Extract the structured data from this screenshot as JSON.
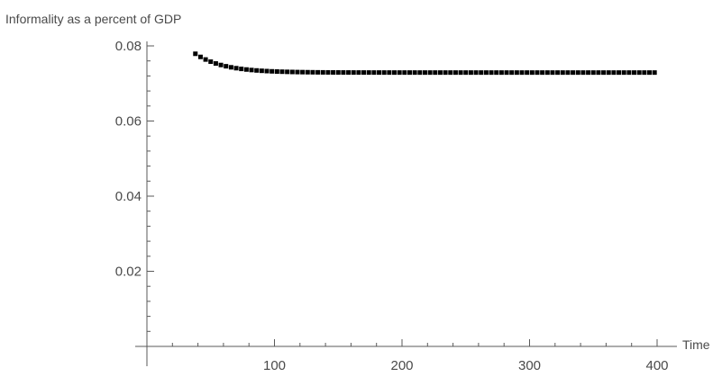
{
  "chart_data": {
    "type": "scatter",
    "title": "",
    "ylabel": "Informality as a percent of GDP",
    "xlabel": "Time",
    "xlim": [
      0,
      400
    ],
    "ylim": [
      0,
      0.08
    ],
    "x_ticks": [
      100,
      200,
      300,
      400
    ],
    "x_tick_labels": [
      "100",
      "200",
      "300",
      "400"
    ],
    "y_ticks": [
      0.02,
      0.04,
      0.06,
      0.08
    ],
    "y_tick_labels": [
      "0.02",
      "0.04",
      "0.06",
      "0.08"
    ],
    "grid": false,
    "marker_color": "#000000",
    "axis_color": "#5a5a5a",
    "label_color": "#4a4a4a",
    "series": [
      {
        "x_start": 38,
        "x_end": 400,
        "x_step": 4,
        "curve": {
          "type": "exponential_decay",
          "asymptote": 0.0729,
          "initial": 0.0779,
          "x0": 38,
          "tau": 22
        }
      }
    ]
  }
}
